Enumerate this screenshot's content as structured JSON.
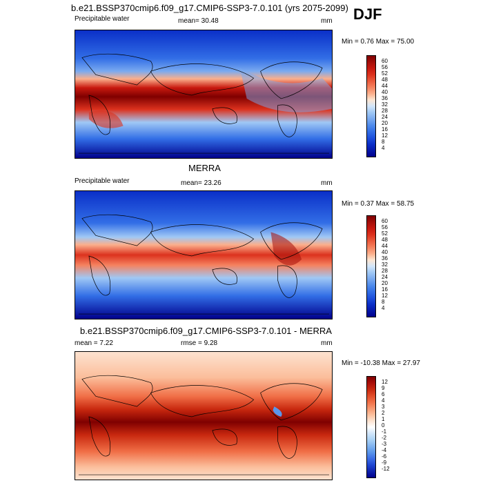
{
  "header": {
    "title": "b.e21.BSSP370cmip6.f09_g17.CMIP6-SSP3-7.0.101 (yrs 2075-2099)",
    "season": "DJF"
  },
  "panels": [
    {
      "id": "model",
      "variable": "Precipitable water",
      "stat_text": "mean=  30.48",
      "units": "mm",
      "minmax_text": "Min =   0.76 Max =  75.00",
      "levels": [
        "60",
        "56",
        "52",
        "48",
        "44",
        "40",
        "36",
        "32",
        "28",
        "24",
        "20",
        "16",
        "12",
        "8",
        "4"
      ]
    },
    {
      "id": "obs",
      "title": "MERRA",
      "variable": "Precipitable water",
      "stat_text": "mean=  23.26",
      "units": "mm",
      "minmax_text": "Min =   0.37 Max =  58.75",
      "levels": [
        "60",
        "56",
        "52",
        "48",
        "44",
        "40",
        "36",
        "32",
        "28",
        "24",
        "20",
        "16",
        "12",
        "8",
        "4"
      ]
    },
    {
      "id": "diff",
      "title": "b.e21.BSSP370cmip6.f09_g17.CMIP6-SSP3-7.0.101 - MERRA",
      "stat_left": "mean =   7.22",
      "stat_mid": "rmse =   9.28",
      "units": "mm",
      "minmax_text": "Min = -10.38 Max =  27.97",
      "levels": [
        "12",
        "9",
        "6",
        "4",
        "3",
        "2",
        "1",
        "0",
        "-1",
        "-2",
        "-3",
        "-4",
        "-6",
        "-9",
        "-12"
      ]
    }
  ],
  "colors": {
    "abs_scale": [
      "#7f0000",
      "#a50f0a",
      "#c8190f",
      "#dc321e",
      "#eb5a3c",
      "#f5825f",
      "#fbaf8c",
      "#fde6d2",
      "#d2e6fa",
      "#a0c8f5",
      "#7aaaf0",
      "#508cec",
      "#326ee6",
      "#1e50dc",
      "#0a2fc8",
      "#00008c"
    ],
    "diff_scale": [
      "#7f0000",
      "#aa0f0a",
      "#c8280f",
      "#e14b28",
      "#f06e46",
      "#f7966e",
      "#fbbe9b",
      "#fde3d0",
      "#ffffff",
      "#d2e6fa",
      "#aad2f5",
      "#82b4f0",
      "#5a96eb",
      "#3c6ee6",
      "#1e46d2",
      "#0a1eb4",
      "#00008c"
    ]
  }
}
